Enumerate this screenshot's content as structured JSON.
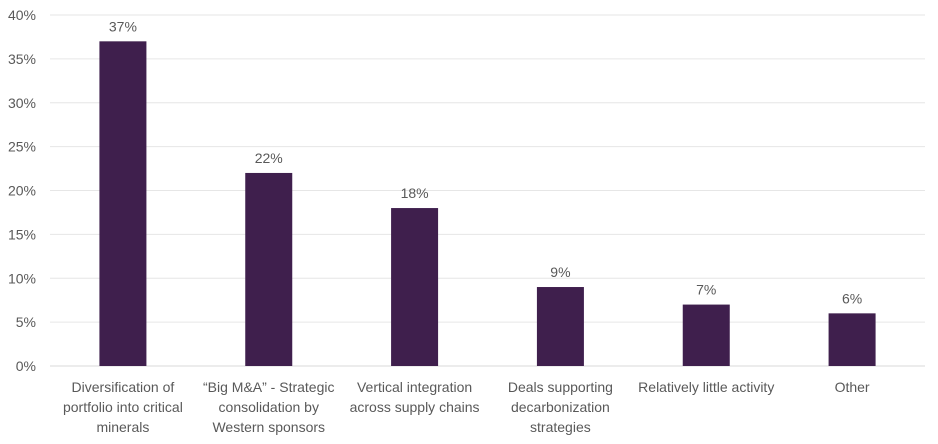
{
  "chart_data": {
    "type": "bar",
    "categories": [
      "Diversification of portfolio into critical minerals",
      "“Big M&A” - Strategic consolidation by Western sponsors",
      "Vertical integration across supply chains",
      "Deals supporting decarbonization strategies",
      "Relatively little activity",
      "Other"
    ],
    "values": [
      37,
      22,
      18,
      9,
      7,
      6
    ],
    "data_labels": [
      "37%",
      "22%",
      "18%",
      "9%",
      "7%",
      "6%"
    ],
    "yticks": [
      "0%",
      "5%",
      "10%",
      "15%",
      "20%",
      "25%",
      "30%",
      "35%",
      "40%"
    ],
    "ylim": [
      0,
      40
    ],
    "title": "",
    "xlabel": "",
    "ylabel": "",
    "grid": true,
    "legend": "none",
    "bar_color": "#3f1f4d"
  }
}
